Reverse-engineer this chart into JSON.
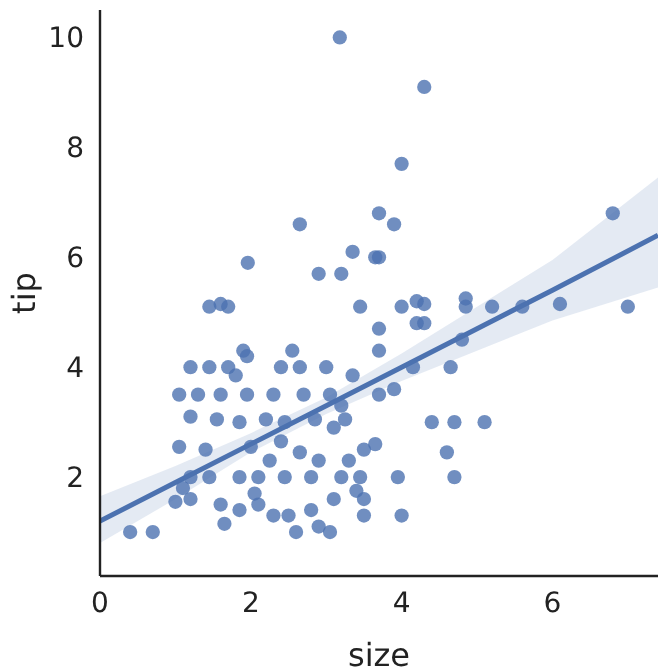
{
  "chart_data": {
    "type": "scatter",
    "xlabel": "size",
    "ylabel": "tip",
    "xlim": [
      0,
      7.4
    ],
    "ylim": [
      0.2,
      10.5
    ],
    "xticks": [
      0,
      2,
      4,
      6
    ],
    "yticks": [
      2,
      4,
      6,
      8,
      10
    ],
    "grid": false,
    "legend": false,
    "marker": "circle",
    "series": [
      {
        "color": "#4c72b0",
        "x": [
          3.18,
          4.3,
          4.0,
          3.7,
          3.9,
          3.7,
          6.8,
          2.65,
          1.96,
          2.9,
          3.2,
          3.35,
          3.65,
          4.0,
          4.2,
          4.3,
          4.85,
          4.85,
          5.2,
          5.6,
          6.1,
          7.0,
          4.2,
          4.3,
          3.7,
          4.8,
          4.65,
          4.15,
          3.7,
          5.1,
          4.4,
          4.7,
          4.6,
          4.7,
          3.95,
          4.0,
          3.5,
          3.65,
          3.5,
          3.7,
          3.9,
          0.4,
          0.7,
          1.0,
          1.1,
          1.2,
          1.45,
          1.85,
          2.1,
          2.45,
          2.8,
          3.2,
          1.2,
          1.6,
          1.85,
          2.1,
          2.5,
          2.8,
          2.9,
          2.6,
          3.05,
          1.65,
          2.3,
          1.05,
          1.3,
          1.6,
          1.95,
          2.3,
          2.7,
          3.05,
          1.2,
          1.45,
          1.7,
          1.95,
          2.4,
          2.65,
          3.0,
          1.9,
          2.55,
          1.45,
          1.6,
          1.7,
          3.45,
          1.2,
          1.55,
          1.85,
          2.2,
          2.45,
          2.85,
          3.1,
          3.25,
          1.05,
          1.4,
          2.0,
          2.4,
          2.65,
          2.9,
          3.3,
          3.45,
          2.25,
          2.05,
          3.4,
          3.1,
          3.5,
          3.35,
          3.2,
          1.8
        ],
        "values": [
          10.0,
          9.1,
          7.7,
          6.8,
          6.6,
          6.0,
          6.8,
          6.6,
          5.9,
          5.7,
          5.7,
          6.1,
          6.0,
          5.1,
          5.2,
          5.15,
          5.25,
          5.1,
          5.1,
          5.1,
          5.15,
          5.1,
          4.8,
          4.8,
          4.7,
          4.5,
          4.0,
          4.0,
          4.3,
          3.0,
          3.0,
          3.0,
          2.45,
          2.0,
          2.0,
          1.3,
          1.6,
          2.6,
          2.5,
          3.5,
          3.6,
          1.0,
          1.0,
          1.55,
          1.8,
          2.0,
          2.0,
          2.0,
          2.0,
          2.0,
          2.0,
          2.0,
          1.6,
          1.5,
          1.4,
          1.5,
          1.3,
          1.4,
          1.1,
          1.0,
          1.0,
          1.15,
          1.3,
          3.5,
          3.5,
          3.5,
          3.5,
          3.5,
          3.5,
          3.5,
          4.0,
          4.0,
          4.0,
          4.2,
          4.0,
          4.0,
          4.0,
          4.3,
          4.3,
          5.1,
          5.15,
          5.1,
          5.1,
          3.1,
          3.05,
          3.0,
          3.05,
          3.0,
          3.05,
          2.9,
          3.05,
          2.55,
          2.5,
          2.55,
          2.65,
          2.45,
          2.3,
          2.3,
          2.0,
          2.3,
          1.7,
          1.75,
          1.6,
          1.3,
          3.85,
          3.3,
          3.85
        ]
      },
      {
        "type": "line",
        "marker": "none",
        "color": "#4c72b0",
        "x": [
          0,
          1,
          2,
          3,
          4,
          5,
          6,
          7.4
        ],
        "values": [
          1.2,
          1.9,
          2.6,
          3.3,
          4.0,
          4.7,
          5.4,
          6.4
        ],
        "lower": [
          0.8,
          1.6,
          2.45,
          3.15,
          3.75,
          4.3,
          4.85,
          5.45
        ],
        "upper": [
          1.65,
          2.2,
          2.8,
          3.45,
          4.25,
          5.1,
          5.95,
          7.45
        ]
      }
    ]
  }
}
